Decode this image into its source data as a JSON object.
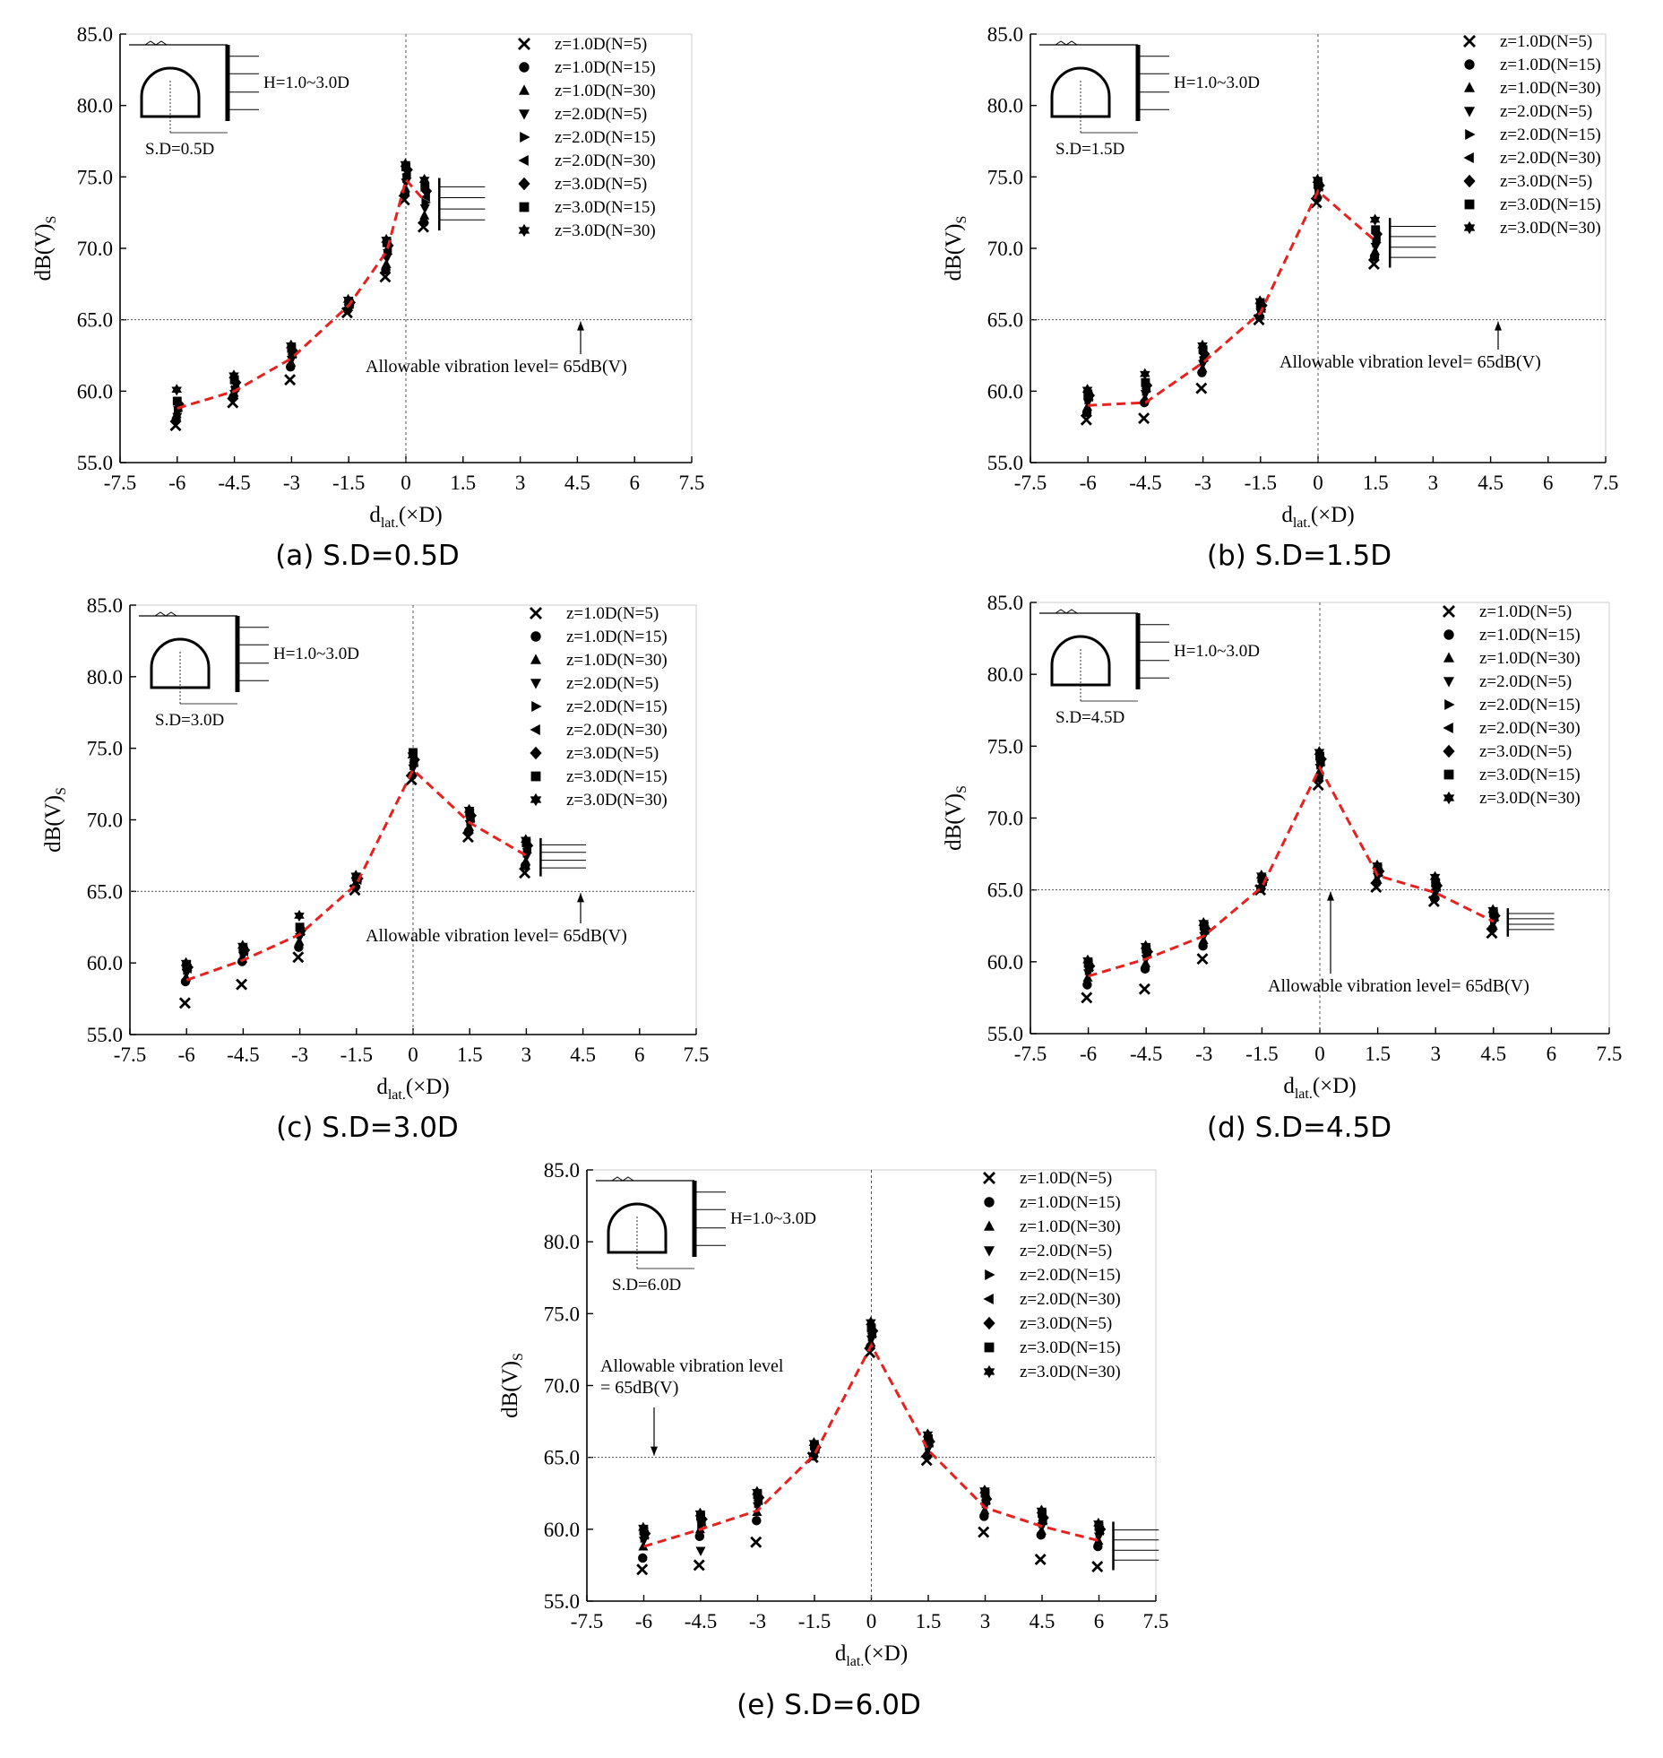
{
  "colors": {
    "fit_line": "#e8211f",
    "markers": "#000000",
    "axis": "#000000",
    "ref_line": "#555555"
  },
  "legend_labels": [
    "z=1.0D(N=5)",
    "z=1.0D(N=15)",
    "z=1.0D(N=30)",
    "z=2.0D(N=5)",
    "z=2.0D(N=15)",
    "z=2.0D(N=30)",
    "z=3.0D(N=5)",
    "z=3.0D(N=15)",
    "z=3.0D(N=30)"
  ],
  "legend_markers": [
    "x-icon",
    "circle-icon",
    "triangle-up-icon",
    "triangle-down-icon",
    "triangle-right-icon",
    "triangle-left-icon",
    "diamond-icon",
    "square-icon",
    "star-icon"
  ],
  "ylabel": "dB(V)",
  "ylabel_sub": "S",
  "xlabel": "d",
  "xlabel_sub": "lat.",
  "xlabel_unit": "(×D)",
  "x_ticks": [
    -7.5,
    -6,
    -4.5,
    -3,
    -1.5,
    0,
    1.5,
    3,
    4.5,
    6,
    7.5
  ],
  "x_tick_labels": [
    "-7.5",
    "-6",
    "-4.5",
    "-3",
    "-1.5",
    "0",
    "1.5",
    "3",
    "4.5",
    "6",
    "7.5"
  ],
  "y_ticks": [
    55,
    60,
    65,
    70,
    75,
    80,
    85
  ],
  "y_tick_labels": [
    "55.0",
    "60.0",
    "65.0",
    "70.0",
    "75.0",
    "80.0",
    "85.0"
  ],
  "inset_h_label": "H=1.0~3.0D",
  "chart_data": [
    {
      "type": "scatter",
      "caption": "(a) S.D=0.5D",
      "inset_sd_label": "S.D=0.5D",
      "allowable_text": [
        "Allowable vibration level= 65dB(V)"
      ],
      "allowable_level": 65,
      "xlim": [
        -7.5,
        7.5
      ],
      "ylim": [
        55,
        85
      ],
      "x": [
        -6,
        -4.5,
        -3,
        -1.5,
        -0.5,
        0,
        0.5
      ],
      "trend": [
        58.8,
        60.0,
        62.3,
        66.0,
        69.8,
        74.8,
        73.3
      ],
      "series": [
        {
          "name": "z=1.0D(N=5)",
          "values": [
            57.6,
            59.2,
            60.8,
            65.5,
            68.0,
            73.4,
            71.5
          ]
        },
        {
          "name": "z=1.0D(N=15)",
          "values": [
            58.0,
            59.6,
            61.7,
            65.7,
            68.5,
            73.8,
            71.8
          ]
        },
        {
          "name": "z=1.0D(N=30)",
          "values": [
            58.4,
            59.9,
            62.0,
            65.9,
            68.9,
            74.2,
            72.3
          ]
        },
        {
          "name": "z=2.0D(N=5)",
          "values": [
            58.2,
            59.8,
            62.2,
            65.8,
            69.3,
            74.6,
            72.8
          ]
        },
        {
          "name": "z=2.0D(N=15)",
          "values": [
            58.6,
            60.1,
            62.4,
            66.0,
            69.6,
            74.9,
            73.2
          ]
        },
        {
          "name": "z=2.0D(N=30)",
          "values": [
            58.9,
            60.3,
            62.6,
            66.1,
            69.9,
            75.2,
            73.6
          ]
        },
        {
          "name": "z=3.0D(N=5)",
          "values": [
            59.1,
            60.6,
            62.8,
            66.2,
            70.2,
            75.5,
            74.0
          ]
        },
        {
          "name": "z=3.0D(N=15)",
          "values": [
            59.3,
            60.8,
            63.0,
            66.3,
            70.4,
            75.7,
            74.3
          ]
        },
        {
          "name": "z=3.0D(N=30)",
          "values": [
            60.1,
            61.1,
            63.2,
            66.4,
            70.6,
            75.9,
            74.8
          ]
        }
      ]
    },
    {
      "type": "scatter",
      "caption": "(b) S.D=1.5D",
      "inset_sd_label": "S.D=1.5D",
      "allowable_text": [
        "Allowable vibration level= 65dB(V)"
      ],
      "allowable_level": 65,
      "xlim": [
        -7.5,
        7.5
      ],
      "ylim": [
        55,
        85
      ],
      "x": [
        -6,
        -4.5,
        -3,
        -1.5,
        0,
        1.5
      ],
      "trend": [
        59.0,
        59.2,
        62.0,
        65.5,
        74.0,
        70.5
      ],
      "series": [
        {
          "name": "z=1.0D(N=5)",
          "values": [
            58.0,
            58.1,
            60.2,
            65.0,
            73.2,
            68.9
          ]
        },
        {
          "name": "z=1.0D(N=15)",
          "values": [
            58.5,
            59.2,
            61.3,
            65.2,
            73.5,
            69.4
          ]
        },
        {
          "name": "z=1.0D(N=30)",
          "values": [
            58.9,
            59.5,
            61.6,
            65.4,
            73.8,
            69.8
          ]
        },
        {
          "name": "z=2.0D(N=5)",
          "values": [
            59.2,
            59.8,
            61.9,
            65.5,
            74.0,
            70.1
          ]
        },
        {
          "name": "z=2.0D(N=15)",
          "values": [
            59.4,
            60.0,
            62.1,
            65.7,
            74.1,
            70.4
          ]
        },
        {
          "name": "z=2.0D(N=30)",
          "values": [
            59.6,
            60.2,
            62.4,
            65.8,
            74.3,
            70.7
          ]
        },
        {
          "name": "z=3.0D(N=5)",
          "values": [
            59.7,
            60.4,
            62.6,
            66.0,
            74.4,
            71.0
          ]
        },
        {
          "name": "z=3.0D(N=15)",
          "values": [
            59.8,
            60.6,
            62.9,
            66.1,
            74.6,
            71.3
          ]
        },
        {
          "name": "z=3.0D(N=30)",
          "values": [
            60.1,
            61.2,
            63.2,
            66.3,
            74.8,
            72.0
          ]
        }
      ]
    },
    {
      "type": "scatter",
      "caption": "(c) S.D=3.0D",
      "inset_sd_label": "S.D=3.0D",
      "allowable_text": [
        "Allowable vibration level= 65dB(V)"
      ],
      "allowable_level": 65,
      "xlim": [
        -7.5,
        7.5
      ],
      "ylim": [
        55,
        85
      ],
      "x": [
        -6,
        -4.5,
        -3,
        -1.5,
        0,
        1.5,
        3
      ],
      "trend": [
        58.8,
        60.2,
        62.0,
        65.5,
        73.5,
        69.8,
        67.5
      ],
      "series": [
        {
          "name": "z=1.0D(N=5)",
          "values": [
            57.2,
            58.5,
            60.4,
            65.1,
            72.8,
            68.8,
            66.3
          ]
        },
        {
          "name": "z=1.0D(N=15)",
          "values": [
            58.7,
            60.1,
            61.1,
            65.3,
            73.1,
            69.2,
            66.8
          ]
        },
        {
          "name": "z=1.0D(N=30)",
          "values": [
            59.0,
            60.3,
            61.5,
            65.5,
            73.3,
            69.5,
            67.1
          ]
        },
        {
          "name": "z=2.0D(N=5)",
          "values": [
            59.3,
            60.5,
            61.8,
            65.6,
            73.6,
            69.7,
            67.4
          ]
        },
        {
          "name": "z=2.0D(N=15)",
          "values": [
            59.5,
            60.7,
            62.0,
            65.7,
            73.8,
            69.9,
            67.7
          ]
        },
        {
          "name": "z=2.0D(N=30)",
          "values": [
            59.6,
            60.8,
            62.2,
            65.8,
            74.0,
            70.1,
            68.0
          ]
        },
        {
          "name": "z=3.0D(N=5)",
          "values": [
            59.7,
            60.9,
            62.3,
            65.9,
            74.2,
            70.3,
            68.2
          ]
        },
        {
          "name": "z=3.0D(N=15)",
          "values": [
            59.9,
            61.0,
            62.5,
            66.0,
            74.7,
            70.5,
            68.4
          ]
        },
        {
          "name": "z=3.0D(N=30)",
          "values": [
            60.0,
            61.2,
            63.3,
            66.1,
            74.5,
            70.7,
            68.6
          ]
        }
      ]
    },
    {
      "type": "scatter",
      "caption": "(d) S.D=4.5D",
      "inset_sd_label": "S.D=4.5D",
      "allowable_text": [
        "Allowable vibration level= 65dB(V)"
      ],
      "allowable_level": 65,
      "xlim": [
        -7.5,
        7.5
      ],
      "ylim": [
        55,
        85
      ],
      "x": [
        -6,
        -4.5,
        -3,
        -1.5,
        0,
        1.5,
        3,
        4.5
      ],
      "trend": [
        59.0,
        60.2,
        61.8,
        65.2,
        73.5,
        66.0,
        64.8,
        62.8
      ],
      "series": [
        {
          "name": "z=1.0D(N=5)",
          "values": [
            57.5,
            58.1,
            60.2,
            65.0,
            72.3,
            65.2,
            64.2,
            62.0
          ]
        },
        {
          "name": "z=1.0D(N=15)",
          "values": [
            58.4,
            59.5,
            61.1,
            65.1,
            72.8,
            65.5,
            64.4,
            62.3
          ]
        },
        {
          "name": "z=1.0D(N=30)",
          "values": [
            58.9,
            59.9,
            61.5,
            65.3,
            73.2,
            65.7,
            64.6,
            62.5
          ]
        },
        {
          "name": "z=2.0D(N=5)",
          "values": [
            59.2,
            60.2,
            61.8,
            65.4,
            73.5,
            65.9,
            64.8,
            62.7
          ]
        },
        {
          "name": "z=2.0D(N=15)",
          "values": [
            59.4,
            60.4,
            62.0,
            65.5,
            73.7,
            66.0,
            65.0,
            62.9
          ]
        },
        {
          "name": "z=2.0D(N=30)",
          "values": [
            59.6,
            60.6,
            62.2,
            65.6,
            73.9,
            66.2,
            65.2,
            63.1
          ]
        },
        {
          "name": "z=3.0D(N=5)",
          "values": [
            59.7,
            60.7,
            62.3,
            65.7,
            74.1,
            66.3,
            65.3,
            63.2
          ]
        },
        {
          "name": "z=3.0D(N=15)",
          "values": [
            59.9,
            60.9,
            62.5,
            65.8,
            74.3,
            66.5,
            65.5,
            63.4
          ]
        },
        {
          "name": "z=3.0D(N=30)",
          "values": [
            60.1,
            61.1,
            62.7,
            66.0,
            74.6,
            66.7,
            65.9,
            63.6
          ]
        }
      ]
    },
    {
      "type": "scatter",
      "caption": "(e) S.D=6.0D",
      "inset_sd_label": "S.D=6.0D",
      "allowable_text": [
        "Allowable vibration level",
        "= 65dB(V)"
      ],
      "allowable_level": 65,
      "xlim": [
        -7.5,
        7.5
      ],
      "ylim": [
        55,
        85
      ],
      "x": [
        -6,
        -4.5,
        -3,
        -1.5,
        0,
        1.5,
        3,
        4.5,
        6
      ],
      "trend": [
        58.8,
        60.0,
        61.3,
        65.2,
        72.8,
        65.5,
        61.5,
        60.2,
        59.2
      ],
      "series": [
        {
          "name": "z=1.0D(N=5)",
          "values": [
            57.2,
            57.5,
            59.1,
            65.0,
            72.3,
            64.8,
            59.8,
            57.9,
            57.4
          ]
        },
        {
          "name": "z=1.0D(N=15)",
          "values": [
            58.0,
            59.5,
            60.6,
            65.1,
            72.7,
            65.1,
            60.9,
            59.6,
            58.8
          ]
        },
        {
          "name": "z=1.0D(N=30)",
          "values": [
            58.8,
            60.0,
            61.2,
            65.3,
            73.0,
            65.4,
            61.3,
            59.9,
            59.2
          ]
        },
        {
          "name": "z=2.0D(N=5)",
          "values": [
            59.2,
            58.5,
            61.6,
            65.4,
            73.2,
            65.6,
            61.6,
            60.2,
            59.5
          ]
        },
        {
          "name": "z=2.0D(N=15)",
          "values": [
            59.4,
            60.3,
            61.8,
            65.5,
            73.4,
            65.8,
            61.8,
            60.4,
            59.7
          ]
        },
        {
          "name": "z=2.0D(N=30)",
          "values": [
            59.6,
            60.5,
            62.0,
            65.6,
            73.6,
            66.0,
            62.0,
            60.6,
            59.9
          ]
        },
        {
          "name": "z=3.0D(N=5)",
          "values": [
            59.7,
            60.7,
            62.2,
            65.7,
            73.8,
            66.1,
            62.1,
            60.8,
            60.0
          ]
        },
        {
          "name": "z=3.0D(N=15)",
          "values": [
            59.9,
            60.9,
            62.4,
            65.8,
            74.0,
            66.3,
            62.5,
            61.1,
            60.2
          ]
        },
        {
          "name": "z=3.0D(N=30)",
          "values": [
            60.1,
            61.1,
            62.6,
            66.0,
            74.4,
            66.6,
            62.7,
            61.3,
            60.4
          ]
        }
      ]
    }
  ]
}
